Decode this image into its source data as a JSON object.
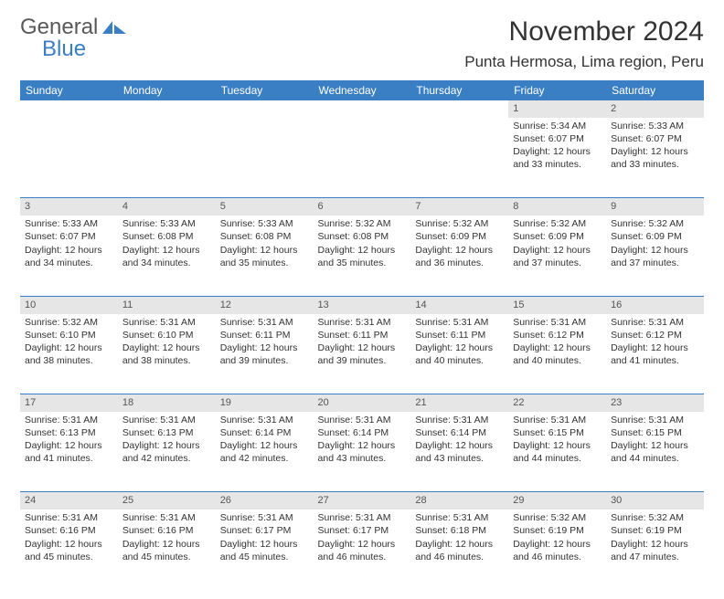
{
  "brand": {
    "part1": "General",
    "part2": "Blue"
  },
  "title": "November 2024",
  "location": "Punta Hermosa, Lima region, Peru",
  "colors": {
    "header_bg": "#3a7fc4",
    "header_text": "#ffffff",
    "daynum_bg": "#e6e6e6",
    "cell_border": "#3a7fc4",
    "body_text": "#333333",
    "logo_gray": "#595959",
    "logo_blue": "#3a7fc4"
  },
  "day_headers": [
    "Sunday",
    "Monday",
    "Tuesday",
    "Wednesday",
    "Thursday",
    "Friday",
    "Saturday"
  ],
  "weeks": [
    [
      null,
      null,
      null,
      null,
      null,
      {
        "day": "1",
        "sunrise": "Sunrise: 5:34 AM",
        "sunset": "Sunset: 6:07 PM",
        "dl1": "Daylight: 12 hours",
        "dl2": "and 33 minutes."
      },
      {
        "day": "2",
        "sunrise": "Sunrise: 5:33 AM",
        "sunset": "Sunset: 6:07 PM",
        "dl1": "Daylight: 12 hours",
        "dl2": "and 33 minutes."
      }
    ],
    [
      {
        "day": "3",
        "sunrise": "Sunrise: 5:33 AM",
        "sunset": "Sunset: 6:07 PM",
        "dl1": "Daylight: 12 hours",
        "dl2": "and 34 minutes."
      },
      {
        "day": "4",
        "sunrise": "Sunrise: 5:33 AM",
        "sunset": "Sunset: 6:08 PM",
        "dl1": "Daylight: 12 hours",
        "dl2": "and 34 minutes."
      },
      {
        "day": "5",
        "sunrise": "Sunrise: 5:33 AM",
        "sunset": "Sunset: 6:08 PM",
        "dl1": "Daylight: 12 hours",
        "dl2": "and 35 minutes."
      },
      {
        "day": "6",
        "sunrise": "Sunrise: 5:32 AM",
        "sunset": "Sunset: 6:08 PM",
        "dl1": "Daylight: 12 hours",
        "dl2": "and 35 minutes."
      },
      {
        "day": "7",
        "sunrise": "Sunrise: 5:32 AM",
        "sunset": "Sunset: 6:09 PM",
        "dl1": "Daylight: 12 hours",
        "dl2": "and 36 minutes."
      },
      {
        "day": "8",
        "sunrise": "Sunrise: 5:32 AM",
        "sunset": "Sunset: 6:09 PM",
        "dl1": "Daylight: 12 hours",
        "dl2": "and 37 minutes."
      },
      {
        "day": "9",
        "sunrise": "Sunrise: 5:32 AM",
        "sunset": "Sunset: 6:09 PM",
        "dl1": "Daylight: 12 hours",
        "dl2": "and 37 minutes."
      }
    ],
    [
      {
        "day": "10",
        "sunrise": "Sunrise: 5:32 AM",
        "sunset": "Sunset: 6:10 PM",
        "dl1": "Daylight: 12 hours",
        "dl2": "and 38 minutes."
      },
      {
        "day": "11",
        "sunrise": "Sunrise: 5:31 AM",
        "sunset": "Sunset: 6:10 PM",
        "dl1": "Daylight: 12 hours",
        "dl2": "and 38 minutes."
      },
      {
        "day": "12",
        "sunrise": "Sunrise: 5:31 AM",
        "sunset": "Sunset: 6:11 PM",
        "dl1": "Daylight: 12 hours",
        "dl2": "and 39 minutes."
      },
      {
        "day": "13",
        "sunrise": "Sunrise: 5:31 AM",
        "sunset": "Sunset: 6:11 PM",
        "dl1": "Daylight: 12 hours",
        "dl2": "and 39 minutes."
      },
      {
        "day": "14",
        "sunrise": "Sunrise: 5:31 AM",
        "sunset": "Sunset: 6:11 PM",
        "dl1": "Daylight: 12 hours",
        "dl2": "and 40 minutes."
      },
      {
        "day": "15",
        "sunrise": "Sunrise: 5:31 AM",
        "sunset": "Sunset: 6:12 PM",
        "dl1": "Daylight: 12 hours",
        "dl2": "and 40 minutes."
      },
      {
        "day": "16",
        "sunrise": "Sunrise: 5:31 AM",
        "sunset": "Sunset: 6:12 PM",
        "dl1": "Daylight: 12 hours",
        "dl2": "and 41 minutes."
      }
    ],
    [
      {
        "day": "17",
        "sunrise": "Sunrise: 5:31 AM",
        "sunset": "Sunset: 6:13 PM",
        "dl1": "Daylight: 12 hours",
        "dl2": "and 41 minutes."
      },
      {
        "day": "18",
        "sunrise": "Sunrise: 5:31 AM",
        "sunset": "Sunset: 6:13 PM",
        "dl1": "Daylight: 12 hours",
        "dl2": "and 42 minutes."
      },
      {
        "day": "19",
        "sunrise": "Sunrise: 5:31 AM",
        "sunset": "Sunset: 6:14 PM",
        "dl1": "Daylight: 12 hours",
        "dl2": "and 42 minutes."
      },
      {
        "day": "20",
        "sunrise": "Sunrise: 5:31 AM",
        "sunset": "Sunset: 6:14 PM",
        "dl1": "Daylight: 12 hours",
        "dl2": "and 43 minutes."
      },
      {
        "day": "21",
        "sunrise": "Sunrise: 5:31 AM",
        "sunset": "Sunset: 6:14 PM",
        "dl1": "Daylight: 12 hours",
        "dl2": "and 43 minutes."
      },
      {
        "day": "22",
        "sunrise": "Sunrise: 5:31 AM",
        "sunset": "Sunset: 6:15 PM",
        "dl1": "Daylight: 12 hours",
        "dl2": "and 44 minutes."
      },
      {
        "day": "23",
        "sunrise": "Sunrise: 5:31 AM",
        "sunset": "Sunset: 6:15 PM",
        "dl1": "Daylight: 12 hours",
        "dl2": "and 44 minutes."
      }
    ],
    [
      {
        "day": "24",
        "sunrise": "Sunrise: 5:31 AM",
        "sunset": "Sunset: 6:16 PM",
        "dl1": "Daylight: 12 hours",
        "dl2": "and 45 minutes."
      },
      {
        "day": "25",
        "sunrise": "Sunrise: 5:31 AM",
        "sunset": "Sunset: 6:16 PM",
        "dl1": "Daylight: 12 hours",
        "dl2": "and 45 minutes."
      },
      {
        "day": "26",
        "sunrise": "Sunrise: 5:31 AM",
        "sunset": "Sunset: 6:17 PM",
        "dl1": "Daylight: 12 hours",
        "dl2": "and 45 minutes."
      },
      {
        "day": "27",
        "sunrise": "Sunrise: 5:31 AM",
        "sunset": "Sunset: 6:17 PM",
        "dl1": "Daylight: 12 hours",
        "dl2": "and 46 minutes."
      },
      {
        "day": "28",
        "sunrise": "Sunrise: 5:31 AM",
        "sunset": "Sunset: 6:18 PM",
        "dl1": "Daylight: 12 hours",
        "dl2": "and 46 minutes."
      },
      {
        "day": "29",
        "sunrise": "Sunrise: 5:32 AM",
        "sunset": "Sunset: 6:19 PM",
        "dl1": "Daylight: 12 hours",
        "dl2": "and 46 minutes."
      },
      {
        "day": "30",
        "sunrise": "Sunrise: 5:32 AM",
        "sunset": "Sunset: 6:19 PM",
        "dl1": "Daylight: 12 hours",
        "dl2": "and 47 minutes."
      }
    ]
  ]
}
